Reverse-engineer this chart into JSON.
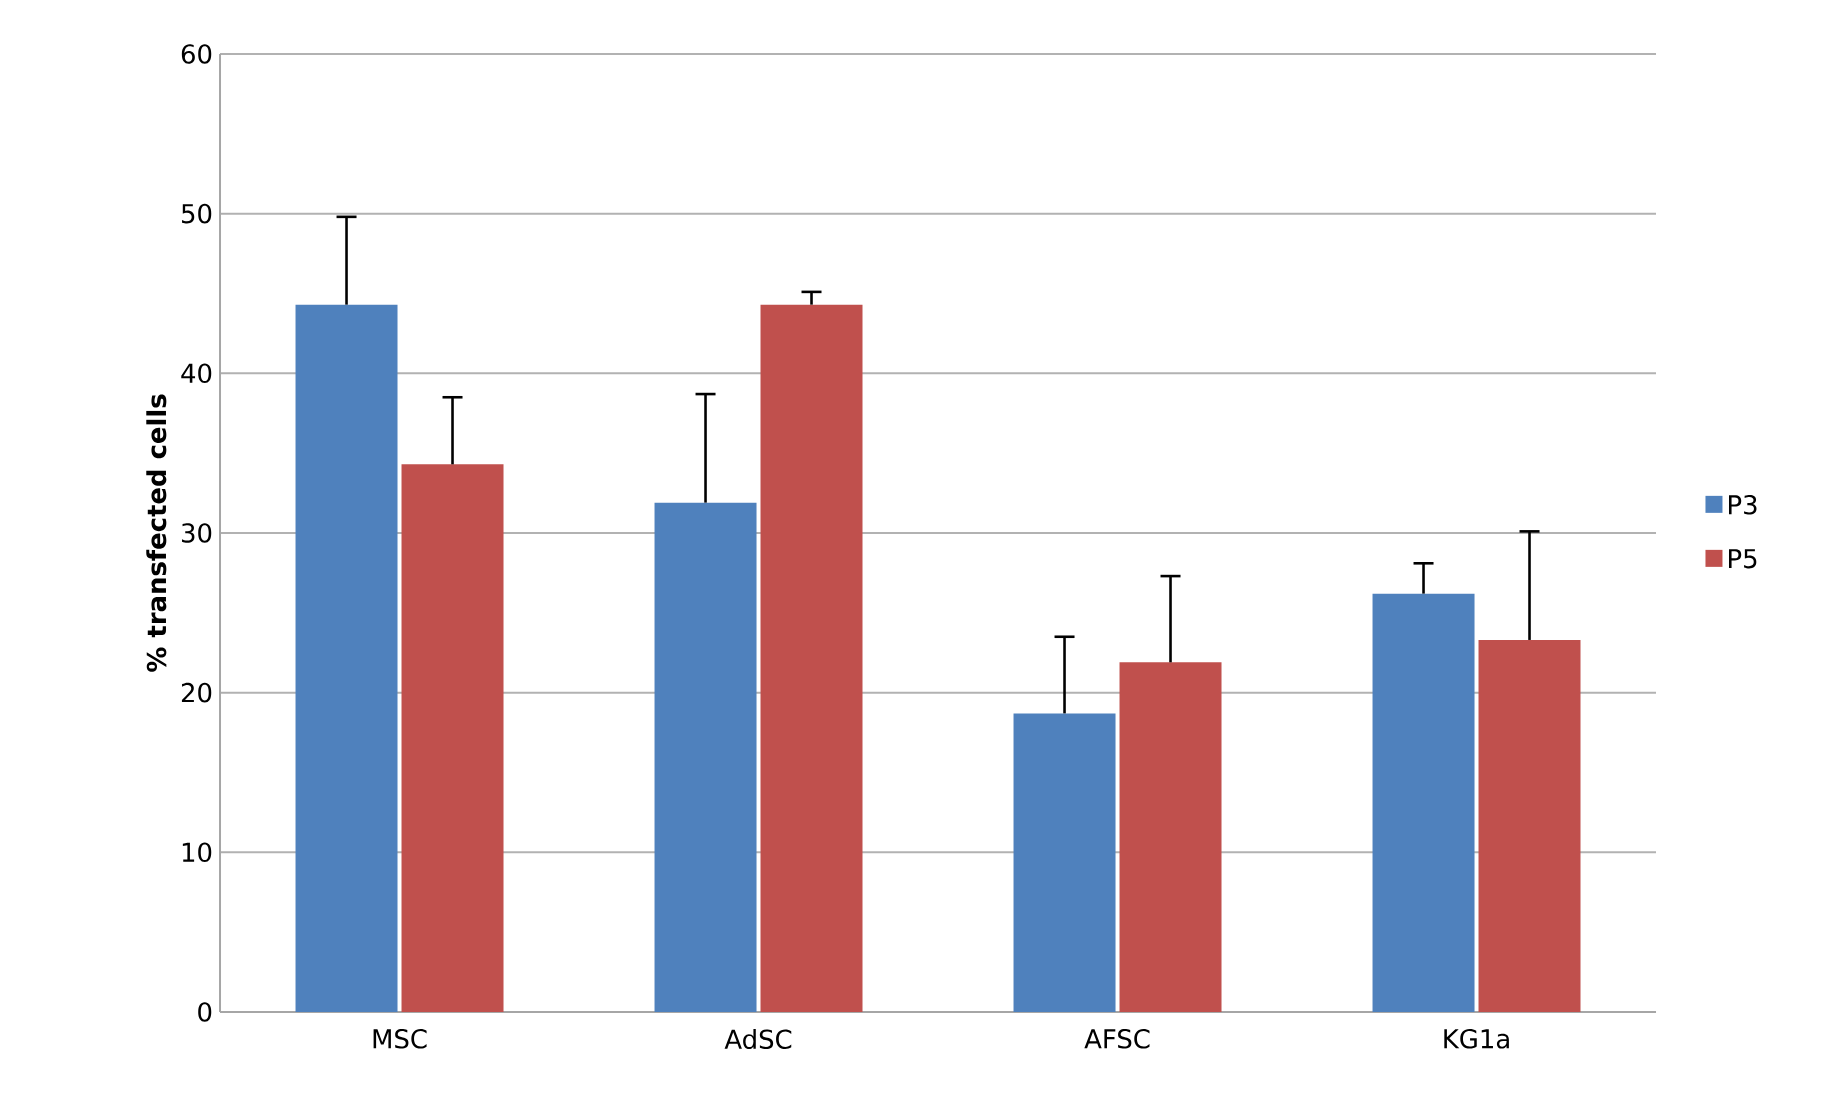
{
  "chart_data": {
    "type": "bar",
    "ylabel": "% transfected cells",
    "categories": [
      "MSC",
      "AdSC",
      "AFSC",
      "KG1a"
    ],
    "series": [
      {
        "name": "P3",
        "color": "#4f81bd",
        "values": [
          44.3,
          31.9,
          18.7,
          26.2
        ],
        "errors": [
          5.5,
          6.8,
          4.8,
          1.9
        ]
      },
      {
        "name": "P5",
        "color": "#c0504d",
        "values": [
          34.3,
          44.3,
          21.9,
          23.3
        ],
        "errors": [
          4.2,
          0.8,
          5.4,
          6.8
        ]
      }
    ],
    "ylim": [
      0,
      60
    ],
    "yticks": [
      0,
      10,
      20,
      30,
      40,
      50,
      60
    ],
    "grid": "y",
    "legend": "right"
  }
}
